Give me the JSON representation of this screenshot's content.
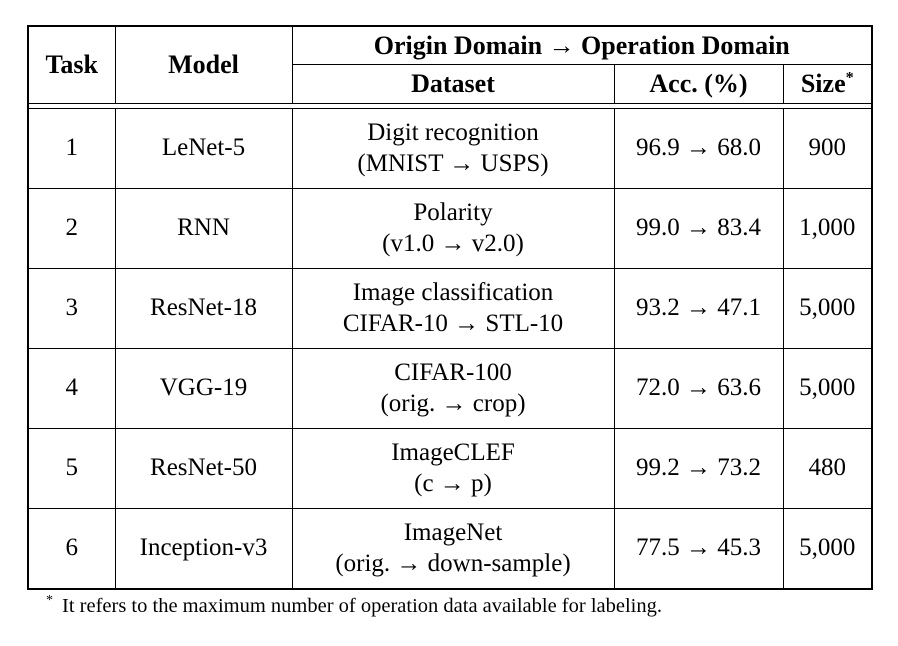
{
  "table": {
    "header": {
      "task": "Task",
      "model": "Model",
      "span_title": "Origin Domain → Operation Domain",
      "dataset": "Dataset",
      "acc": "Acc. (%)",
      "size": "Size",
      "size_sup": "*"
    },
    "rows": [
      {
        "task": "1",
        "model": "LeNet-5",
        "dataset_line1": "Digit recognition",
        "dataset_line2": "(MNIST → USPS)",
        "acc": "96.9 → 68.0",
        "size": "900"
      },
      {
        "task": "2",
        "model": "RNN",
        "dataset_line1": "Polarity",
        "dataset_line2": "(v1.0 → v2.0)",
        "acc": "99.0 → 83.4",
        "size": "1,000"
      },
      {
        "task": "3",
        "model": "ResNet-18",
        "dataset_line1": "Image classification",
        "dataset_line2": "CIFAR-10 → STL-10",
        "acc": "93.2 → 47.1",
        "size": "5,000"
      },
      {
        "task": "4",
        "model": "VGG-19",
        "dataset_line1": "CIFAR-100",
        "dataset_line2": "(orig. → crop)",
        "acc": "72.0 → 63.6",
        "size": "5,000"
      },
      {
        "task": "5",
        "model": "ResNet-50",
        "dataset_line1": "ImageCLEF",
        "dataset_line2": "(c → p)",
        "acc": "99.2 → 73.2",
        "size": "480"
      },
      {
        "task": "6",
        "model": "Inception-v3",
        "dataset_line1": "ImageNet",
        "dataset_line2": "(orig. → down-sample)",
        "acc": "77.5 → 45.3",
        "size": "5,000"
      }
    ],
    "footnote": {
      "marker": "*",
      "text": "It refers to the maximum number of operation data available for labeling."
    }
  },
  "colors": {
    "text": "#000000",
    "background": "#ffffff",
    "border": "#000000"
  }
}
